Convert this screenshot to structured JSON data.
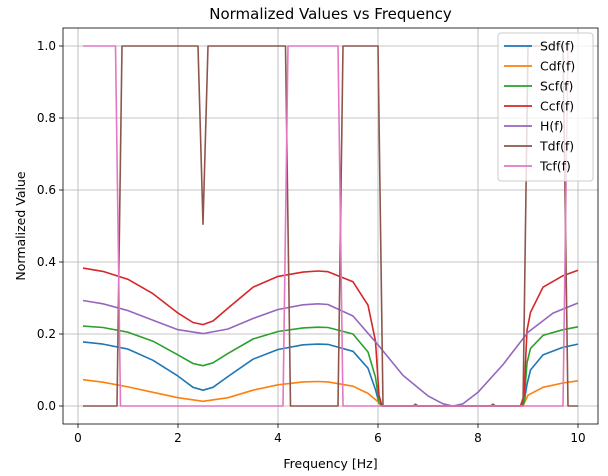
{
  "chart_data": {
    "type": "line",
    "title": "Normalized Values vs Frequency",
    "xlabel": "Frequency [Hz]",
    "ylabel": "Normalized Value",
    "xlim": [
      -0.3,
      10.4
    ],
    "ylim": [
      -0.05,
      1.05
    ],
    "xticks": [
      0,
      2,
      4,
      6,
      8,
      10
    ],
    "xtick_labels": [
      "0",
      "2",
      "4",
      "6",
      "8",
      "10"
    ],
    "yticks": [
      0.0,
      0.2,
      0.4,
      0.6,
      0.8,
      1.0
    ],
    "ytick_labels": [
      "0.0",
      "0.2",
      "0.4",
      "0.6",
      "0.8",
      "1.0"
    ],
    "grid": true,
    "legend_position": "upper right",
    "series": [
      {
        "name": "Sdf(f)",
        "color": "#1f77b4",
        "x": [
          0.1,
          0.5,
          1.0,
          1.5,
          2.0,
          2.3,
          2.5,
          2.7,
          3.0,
          3.5,
          4.0,
          4.5,
          4.8,
          5.0,
          5.5,
          5.8,
          5.95,
          6.02,
          6.08,
          6.15,
          6.5,
          7.0,
          7.5,
          8.0,
          8.5,
          8.85,
          8.92,
          8.98,
          9.05,
          9.3,
          9.7,
          10.0
        ],
        "y": [
          0.178,
          0.172,
          0.158,
          0.127,
          0.083,
          0.052,
          0.044,
          0.052,
          0.082,
          0.13,
          0.157,
          0.17,
          0.172,
          0.171,
          0.152,
          0.105,
          0.045,
          0.008,
          0.0,
          0.0,
          0.0,
          0.0,
          0.0,
          0.0,
          0.0,
          0.0,
          0.008,
          0.06,
          0.1,
          0.142,
          0.163,
          0.172
        ]
      },
      {
        "name": "Cdf(f)",
        "color": "#ff7f0e",
        "x": [
          0.1,
          0.5,
          1.0,
          1.5,
          2.0,
          2.5,
          3.0,
          3.5,
          4.0,
          4.5,
          4.8,
          5.0,
          5.5,
          5.8,
          6.0,
          6.1,
          6.5,
          7.0,
          7.5,
          8.0,
          8.5,
          8.9,
          9.0,
          9.3,
          9.7,
          10.0
        ],
        "y": [
          0.073,
          0.066,
          0.053,
          0.038,
          0.023,
          0.013,
          0.023,
          0.044,
          0.059,
          0.067,
          0.068,
          0.067,
          0.055,
          0.035,
          0.012,
          0.0,
          0.0,
          0.0,
          0.0,
          0.0,
          0.0,
          0.0,
          0.03,
          0.052,
          0.064,
          0.07
        ]
      },
      {
        "name": "Scf(f)",
        "color": "#2ca02c",
        "x": [
          0.1,
          0.5,
          1.0,
          1.5,
          2.0,
          2.3,
          2.5,
          2.7,
          3.0,
          3.5,
          4.0,
          4.5,
          4.8,
          5.0,
          5.5,
          5.8,
          5.95,
          6.02,
          6.08,
          6.15,
          6.5,
          7.0,
          7.5,
          8.0,
          8.5,
          8.85,
          8.92,
          8.98,
          9.05,
          9.3,
          9.7,
          10.0
        ],
        "y": [
          0.222,
          0.218,
          0.205,
          0.18,
          0.142,
          0.118,
          0.112,
          0.12,
          0.146,
          0.186,
          0.207,
          0.217,
          0.219,
          0.218,
          0.2,
          0.15,
          0.08,
          0.01,
          0.0,
          0.0,
          0.0,
          0.0,
          0.0,
          0.0,
          0.0,
          0.0,
          0.01,
          0.12,
          0.16,
          0.196,
          0.212,
          0.22
        ]
      },
      {
        "name": "Ccf(f)",
        "color": "#d62728",
        "x": [
          0.1,
          0.5,
          1.0,
          1.5,
          2.0,
          2.3,
          2.5,
          2.7,
          3.0,
          3.5,
          4.0,
          4.5,
          4.8,
          5.0,
          5.5,
          5.8,
          5.95,
          6.02,
          6.08,
          6.15,
          6.5,
          7.0,
          7.5,
          8.0,
          8.5,
          8.85,
          8.92,
          8.98,
          9.05,
          9.3,
          9.7,
          10.0
        ],
        "y": [
          0.383,
          0.374,
          0.352,
          0.312,
          0.258,
          0.232,
          0.226,
          0.236,
          0.272,
          0.33,
          0.36,
          0.372,
          0.375,
          0.373,
          0.345,
          0.28,
          0.18,
          0.03,
          0.0,
          0.0,
          0.0,
          0.0,
          0.0,
          0.0,
          0.0,
          0.0,
          0.03,
          0.21,
          0.26,
          0.33,
          0.362,
          0.377
        ]
      },
      {
        "name": "H(f)",
        "color": "#9467bd",
        "x": [
          0.1,
          0.5,
          1.0,
          1.5,
          2.0,
          2.5,
          3.0,
          3.5,
          4.0,
          4.5,
          4.8,
          5.0,
          5.5,
          6.0,
          6.5,
          7.0,
          7.3,
          7.5,
          7.7,
          8.0,
          8.5,
          9.0,
          9.5,
          10.0
        ],
        "y": [
          0.293,
          0.284,
          0.265,
          0.238,
          0.212,
          0.201,
          0.214,
          0.243,
          0.268,
          0.281,
          0.284,
          0.282,
          0.25,
          0.17,
          0.085,
          0.028,
          0.006,
          0.0,
          0.006,
          0.038,
          0.115,
          0.205,
          0.258,
          0.286
        ]
      },
      {
        "name": "Tdf(f)",
        "color": "#8c564b",
        "x": [
          0.1,
          0.78,
          0.88,
          2.4,
          2.5,
          2.6,
          4.15,
          4.25,
          5.2,
          5.3,
          6.0,
          6.1,
          6.7,
          6.75,
          6.8,
          8.25,
          8.3,
          8.35,
          8.9,
          9.0,
          9.7,
          9.8,
          10.0
        ],
        "y": [
          0.0,
          0.0,
          1.0,
          1.0,
          0.505,
          1.0,
          1.0,
          0.0,
          0.0,
          1.0,
          1.0,
          0.0,
          0.0,
          0.005,
          0.0,
          0.0,
          0.005,
          0.0,
          0.0,
          1.0,
          1.0,
          0.0,
          0.0
        ]
      },
      {
        "name": "Tcf(f)",
        "color": "#e377c2",
        "x": [
          0.1,
          0.75,
          0.85,
          4.1,
          4.2,
          5.2,
          5.3,
          9.7,
          9.8
        ],
        "y": [
          1.0,
          1.0,
          0.0,
          0.0,
          1.0,
          1.0,
          0.0,
          0.0,
          1.0
        ]
      }
    ]
  }
}
